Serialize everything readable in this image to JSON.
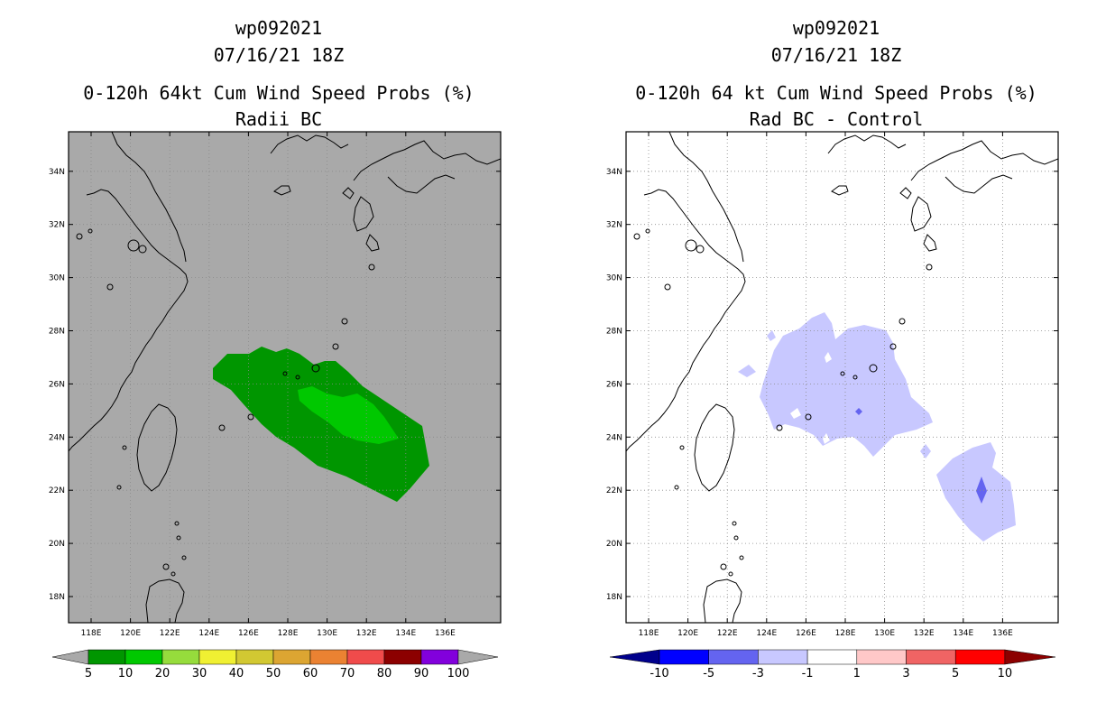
{
  "panels": [
    {
      "id": "left",
      "title_line1": "wp092021",
      "title_line2": "07/16/21 18Z",
      "title_line3": "0-120h 64kt Cum Wind Speed Probs (%)",
      "title_line4": "Radii BC",
      "background_color": "#a9a9a9",
      "colorbar_labels": [
        "5",
        "10",
        "20",
        "30",
        "40",
        "50",
        "60",
        "70",
        "80",
        "90",
        "100"
      ],
      "colorbar_colors": [
        "#009600",
        "#00c800",
        "#96dc3c",
        "#f0f032",
        "#d2c832",
        "#dca532",
        "#eb8232",
        "#f04b4b",
        "#8c0000",
        "#8200dc"
      ],
      "colorbar_end_color": "#a9a9a9"
    },
    {
      "id": "right",
      "title_line1": "wp092021",
      "title_line2": "07/16/21 18Z",
      "title_line3": "0-120h 64 kt Cum Wind Speed Probs (%)",
      "title_line4": "Rad BC - Control",
      "background_color": "#ffffff",
      "colorbar_labels": [
        "-10",
        "-5",
        "-3",
        "-1",
        "1",
        "3",
        "5",
        "10"
      ],
      "colorbar_colors": [
        "#0000ff",
        "#6464f0",
        "#c8c8ff",
        "#ffffff",
        "#ffc8c8",
        "#f06464",
        "#ff0000"
      ],
      "colorbar_end_left": "#00008c",
      "colorbar_end_right": "#8c0000"
    }
  ],
  "map": {
    "lon_labels": [
      "118E",
      "120E",
      "122E",
      "124E",
      "126E",
      "128E",
      "130E",
      "132E",
      "134E",
      "136E"
    ],
    "lat_labels": [
      "18N",
      "20N",
      "22N",
      "24N",
      "26N",
      "28N",
      "30N",
      "32N",
      "34N"
    ]
  }
}
